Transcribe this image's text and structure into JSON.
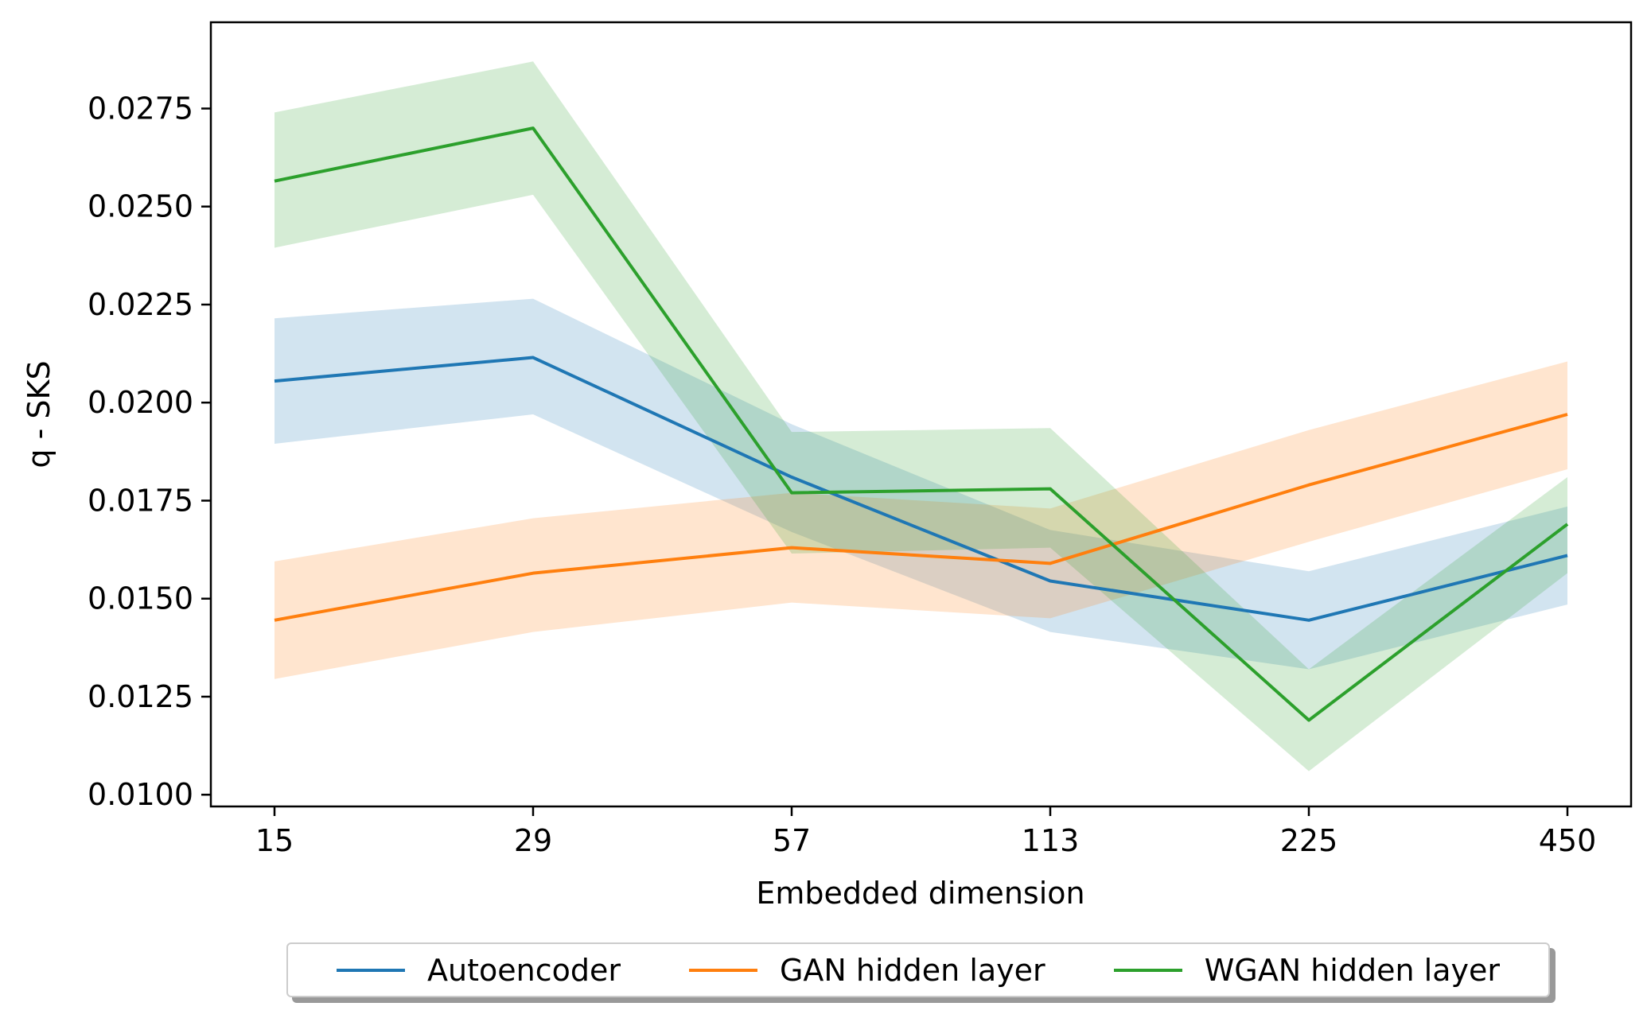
{
  "chart_data": {
    "type": "line",
    "title": "",
    "xlabel": "Embedded dimension",
    "ylabel": "q - SKS",
    "categories": [
      "15",
      "29",
      "57",
      "113",
      "225",
      "450"
    ],
    "ylim": [
      0.0097,
      0.0297
    ],
    "yticks": [
      0.01,
      0.0125,
      0.015,
      0.0175,
      0.02,
      0.0225,
      0.025,
      0.0275
    ],
    "ytick_labels": [
      "0.0100",
      "0.0125",
      "0.0150",
      "0.0175",
      "0.0200",
      "0.0225",
      "0.0250",
      "0.0275"
    ],
    "grid": false,
    "legend_position": "bottom-center",
    "series": [
      {
        "name": "Autoencoder",
        "color": "#1f77b4",
        "values": [
          0.02055,
          0.02115,
          0.0181,
          0.01545,
          0.01445,
          0.0161
        ],
        "lower": [
          0.01895,
          0.0197,
          0.0167,
          0.01415,
          0.0132,
          0.01485
        ],
        "upper": [
          0.02215,
          0.02265,
          0.01945,
          0.01675,
          0.0157,
          0.01735
        ]
      },
      {
        "name": "GAN hidden layer",
        "color": "#ff7f0e",
        "values": [
          0.01445,
          0.01565,
          0.0163,
          0.0159,
          0.0179,
          0.0197
        ],
        "lower": [
          0.01295,
          0.01415,
          0.0149,
          0.0145,
          0.01645,
          0.0183
        ],
        "upper": [
          0.01595,
          0.01705,
          0.0177,
          0.0173,
          0.0193,
          0.02105
        ]
      },
      {
        "name": "WGAN hidden layer",
        "color": "#2ca02c",
        "values": [
          0.02565,
          0.027,
          0.0177,
          0.0178,
          0.0119,
          0.0169
        ],
        "lower": [
          0.02395,
          0.0253,
          0.01615,
          0.0163,
          0.0106,
          0.01565
        ],
        "upper": [
          0.0274,
          0.0287,
          0.01925,
          0.01935,
          0.0132,
          0.0181
        ]
      }
    ]
  }
}
